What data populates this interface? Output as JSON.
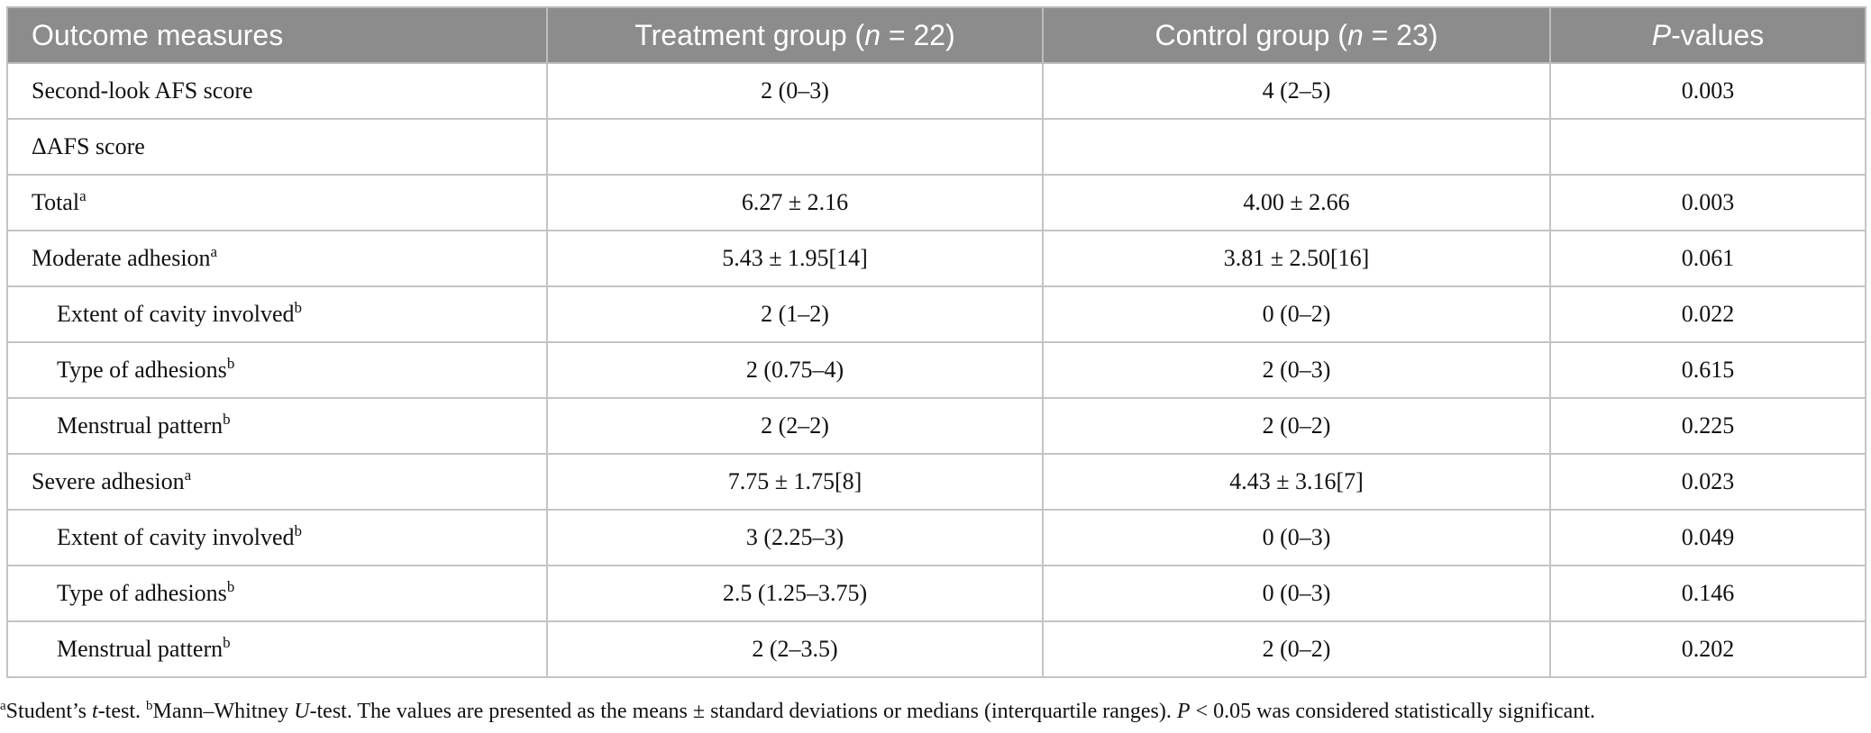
{
  "table": {
    "columns": [
      [
        "Outcome measures"
      ],
      [
        "Treatment group (",
        "n",
        " = 22)"
      ],
      [
        "Control group (",
        "n",
        " = 23)"
      ],
      [
        "P",
        "-values"
      ]
    ],
    "rows": [
      {
        "label": "Second-look AFS score",
        "cells": [
          "2 (0–3)",
          "4 (2–5)",
          "0.003"
        ]
      },
      {
        "label": "ΔAFS score",
        "cells": [
          null,
          null,
          null
        ]
      },
      {
        "label": "Total",
        "note": "a",
        "cells": [
          "6.27 ± 2.16",
          "4.00 ± 2.66",
          "0.003"
        ]
      },
      {
        "label": "Moderate adhesion",
        "note": "a",
        "cells": [
          "5.43 ± 1.95[14]",
          "3.81 ± 2.50[16]",
          "0.061"
        ]
      },
      {
        "label": "Extent of cavity involved",
        "note": "b",
        "cells": [
          "2 (1–2)",
          "0 (0–2)",
          "0.022"
        ]
      },
      {
        "label": "Type of adhesions",
        "note": "b",
        "cells": [
          "2 (0.75–4)",
          "2 (0–3)",
          "0.615"
        ]
      },
      {
        "label": "Menstrual pattern",
        "note": "b",
        "cells": [
          "2 (2–2)",
          "2 (0–2)",
          "0.225"
        ]
      },
      {
        "label": "Severe adhesion",
        "note": "a",
        "cells": [
          "7.75 ± 1.75[8]",
          "4.43 ± 3.16[7]",
          "0.023"
        ]
      },
      {
        "label": "Extent of cavity involved",
        "note": "b",
        "cells": [
          "3 (2.25–3)",
          "0 (0–3)",
          "0.049"
        ]
      },
      {
        "label": "Type of adhesions",
        "note": "b",
        "cells": [
          "2.5 (1.25–3.75)",
          "0 (0–3)",
          "0.146"
        ]
      },
      {
        "label": "Menstrual pattern",
        "note": "b",
        "cells": [
          "2 (2–3.5)",
          "2 (0–2)",
          "0.202"
        ]
      }
    ],
    "footnote": [
      "a",
      "Student’s ",
      "t",
      "-test. ",
      "b",
      "Mann–Whitney ",
      "U",
      "-test. The values are presented as the means ± standard deviations or medians (interquartile ranges). ",
      "P",
      " < 0.05 was considered statistically significant."
    ]
  }
}
